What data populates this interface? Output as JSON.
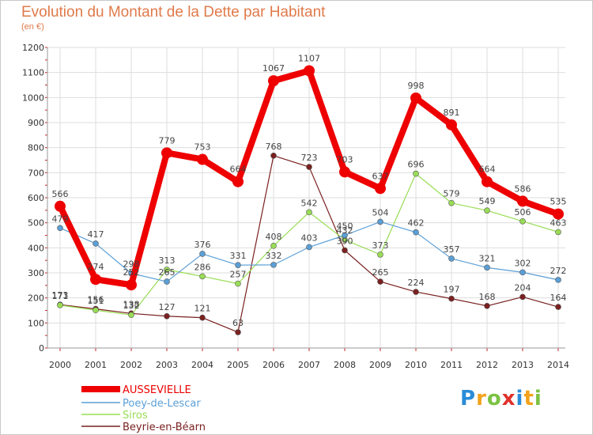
{
  "header": {
    "title": "Evolution du Montant de la Dette par Habitant",
    "subtitle": "(en €)"
  },
  "logo": {
    "text": "Proxiti",
    "letters": [
      "P",
      "r",
      "o",
      "x",
      "i",
      "t",
      "i"
    ],
    "colors": [
      "#2a8cd8",
      "#f2a21b",
      "#7cc242",
      "#e0312b",
      "#2a8cd8",
      "#f2a21b",
      "#7cc242"
    ]
  },
  "chart_data": {
    "type": "line",
    "x": [
      "2000",
      "2001",
      "2002",
      "2003",
      "2004",
      "2005",
      "2006",
      "2007",
      "2008",
      "2009",
      "2010",
      "2011",
      "2012",
      "2013",
      "2014"
    ],
    "ylim": [
      0,
      1200
    ],
    "yticks": [
      0,
      100,
      200,
      300,
      400,
      500,
      600,
      700,
      800,
      900,
      1000,
      1100,
      1200
    ],
    "grid": true,
    "legend": "bottom-left",
    "series": [
      {
        "name": "AUSSEVIELLE",
        "color": "#ee0000",
        "values": [
          566,
          274,
          252,
          779,
          753,
          664,
          1067,
          1107,
          703,
          637,
          998,
          891,
          664,
          586,
          535
        ],
        "labels": [
          "566",
          "274",
          "252",
          "779",
          "753",
          "664",
          "1067",
          "1107",
          "703",
          "637",
          "998",
          "891",
          "664",
          "586",
          "535"
        ]
      },
      {
        "name": "Poey-de-Lescar",
        "color": "#5b9fd6",
        "values": [
          479,
          417,
          298,
          265,
          376,
          331,
          332,
          403,
          450,
          504,
          462,
          357,
          321,
          302,
          272
        ],
        "labels": [
          "479",
          "417",
          "298",
          "265",
          "376",
          "331",
          "332",
          "403",
          "450",
          "504",
          "462",
          "357",
          "321",
          "302",
          "272"
        ]
      },
      {
        "name": "Siros",
        "color": "#99dd55",
        "values": [
          171,
          151,
          132,
          313,
          286,
          257,
          408,
          542,
          432,
          373,
          696,
          579,
          549,
          506,
          463
        ],
        "labels": [
          "171",
          "151",
          "132",
          "313",
          "286",
          "257",
          "408",
          "542",
          "432",
          "373",
          "696",
          "579",
          "549",
          "506",
          "463"
        ]
      },
      {
        "name": "Beyrie-en-Béarn",
        "color": "#7a2020",
        "values": [
          173,
          156,
          138,
          127,
          121,
          63,
          768,
          723,
          390,
          265,
          224,
          197,
          168,
          204,
          164
        ],
        "labels": [
          "173",
          "156",
          "138",
          "127",
          "121",
          "63",
          "768",
          "723",
          "390",
          "265",
          "224",
          "197",
          "168",
          "204",
          "164"
        ]
      }
    ]
  }
}
